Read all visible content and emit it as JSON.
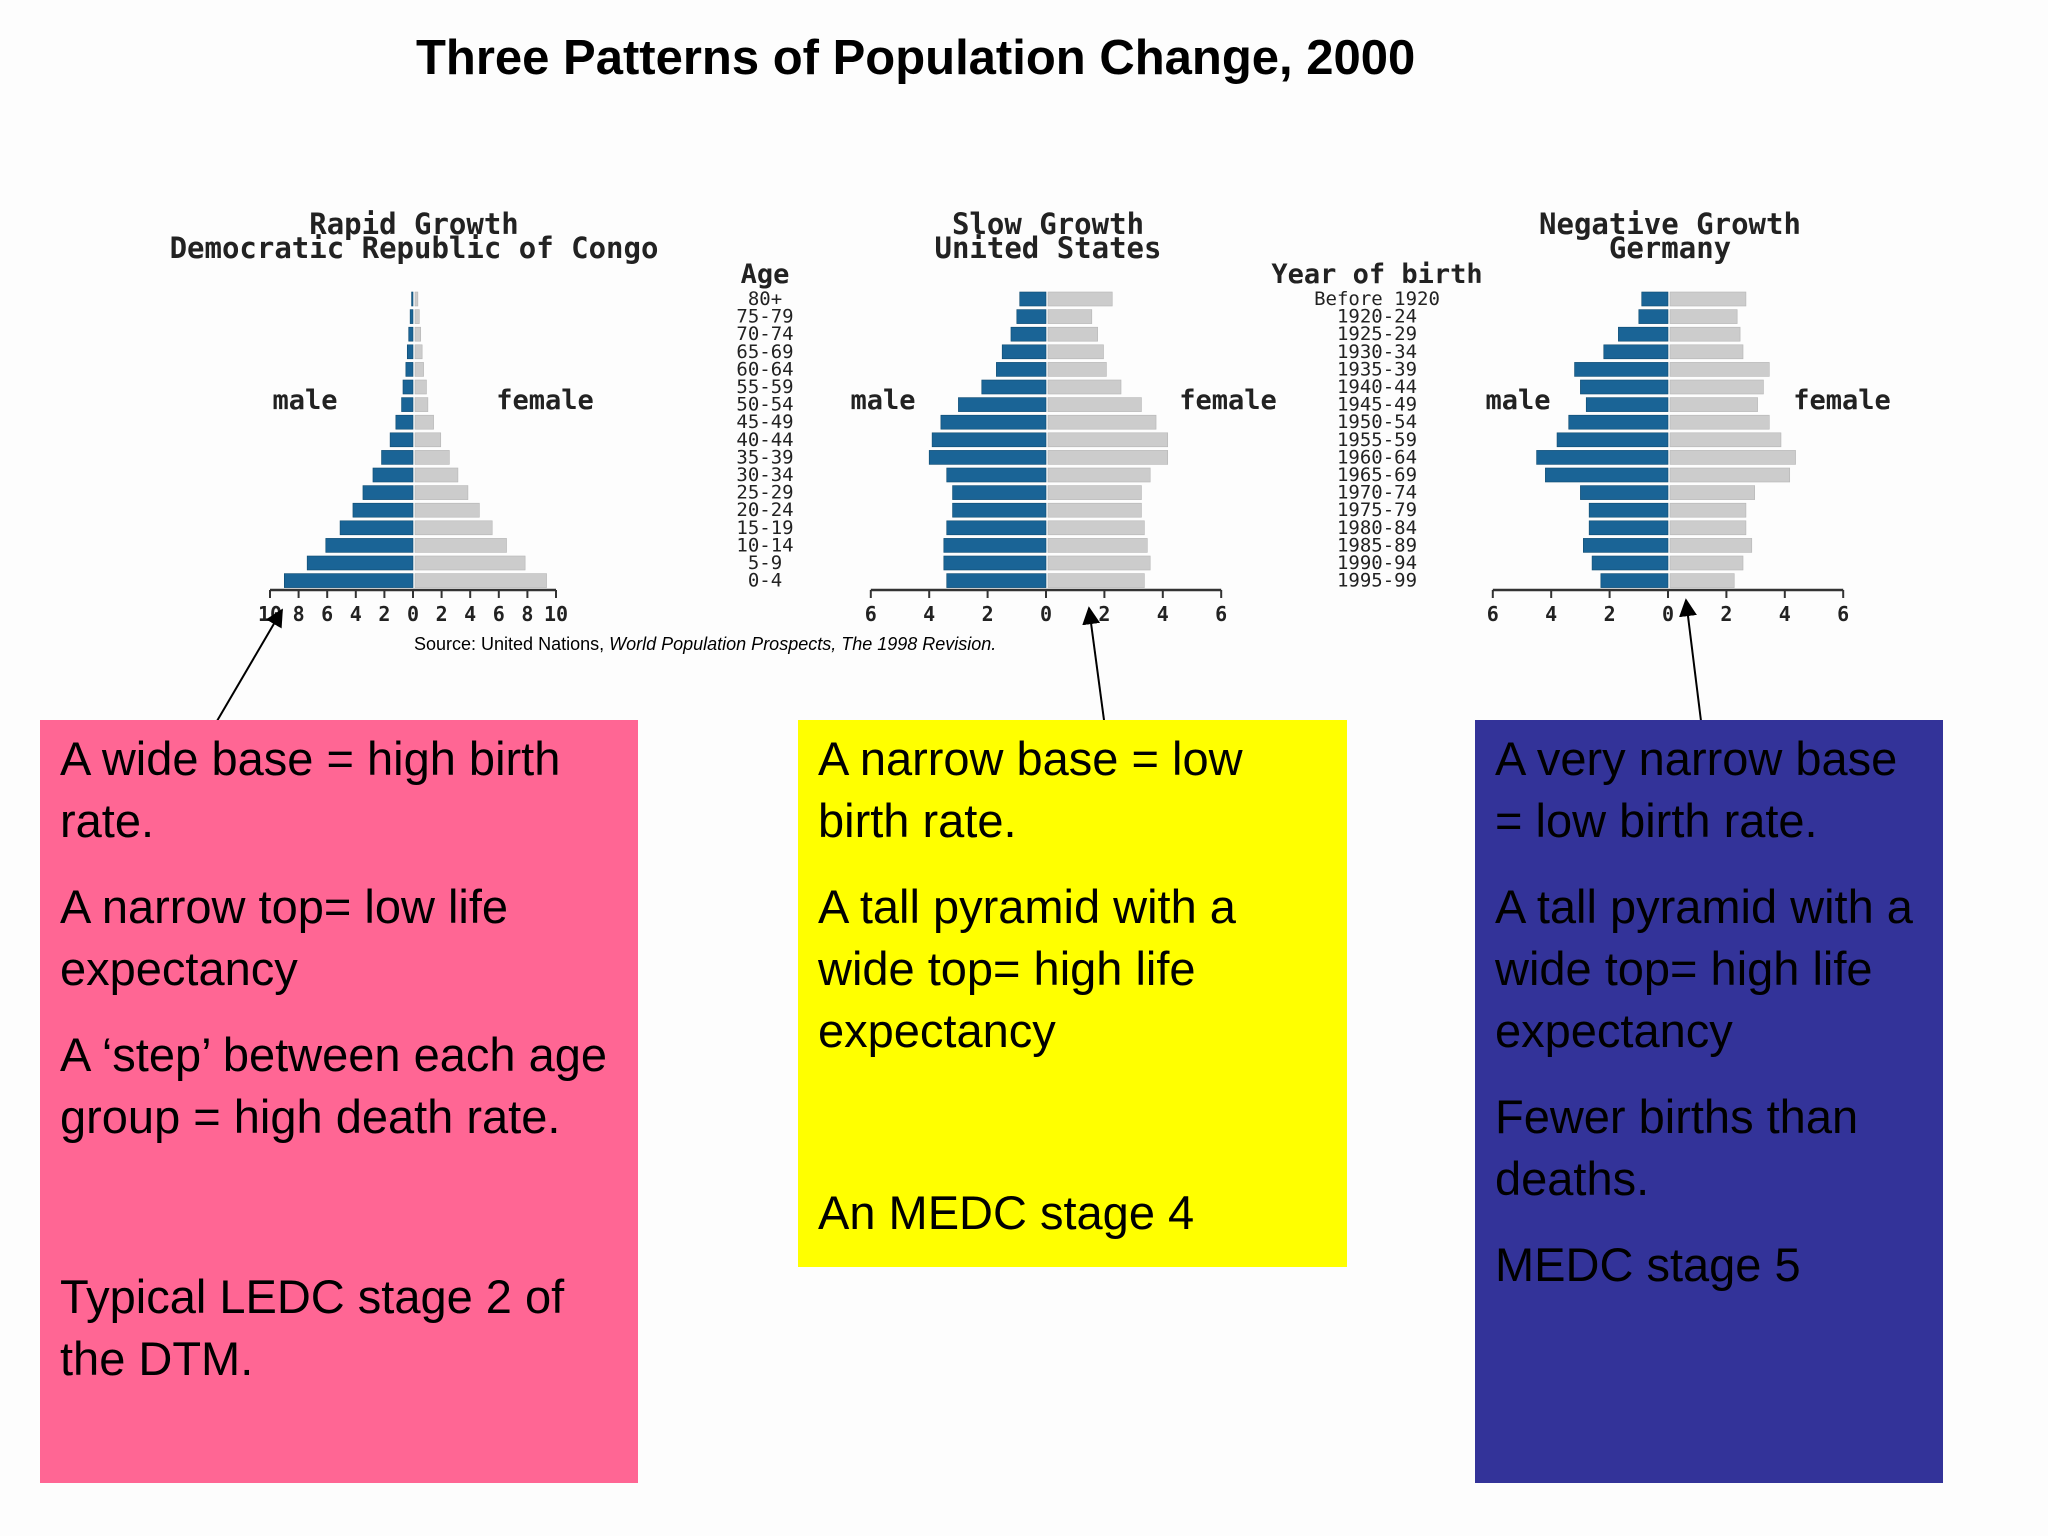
{
  "title": "Three Patterns of Population Change, 2000",
  "source": {
    "prefix": "Source: United Nations, ",
    "publication": "World Population Prospects, The 1998 Revision."
  },
  "colors": {
    "male": "#1a6496",
    "female": "#cccccc"
  },
  "chart_data": [
    {
      "type": "bar",
      "orientation": "horizontal-pyramid",
      "title": "Rapid Growth",
      "subtitle": "Democratic Republic of Congo",
      "side_labels": {
        "male": "male",
        "female": "female"
      },
      "categories_label": "Age",
      "categories": [
        "80+",
        "75-79",
        "70-74",
        "65-69",
        "60-64",
        "55-59",
        "50-54",
        "45-49",
        "40-44",
        "35-39",
        "30-34",
        "25-29",
        "20-24",
        "15-19",
        "10-14",
        "5-9",
        "0-4"
      ],
      "xlim": [
        -10,
        10
      ],
      "ticks": [
        10,
        8,
        6,
        4,
        2,
        0,
        2,
        4,
        6,
        8,
        10
      ],
      "series": [
        {
          "name": "male",
          "values": [
            0.1,
            0.2,
            0.3,
            0.4,
            0.5,
            0.7,
            0.8,
            1.2,
            1.6,
            2.2,
            2.8,
            3.5,
            4.2,
            5.1,
            6.1,
            7.4,
            9.0
          ]
        },
        {
          "name": "female",
          "values": [
            0.2,
            0.3,
            0.4,
            0.5,
            0.6,
            0.8,
            0.9,
            1.3,
            1.8,
            2.4,
            3.0,
            3.7,
            4.5,
            5.4,
            6.4,
            7.7,
            9.2
          ]
        }
      ]
    },
    {
      "type": "bar",
      "orientation": "horizontal-pyramid",
      "title": "Slow Growth",
      "subtitle": "United States",
      "side_labels": {
        "male": "male",
        "female": "female"
      },
      "xlim": [
        -6,
        6
      ],
      "ticks": [
        6,
        4,
        2,
        0,
        2,
        4,
        6
      ],
      "series": [
        {
          "name": "male",
          "values": [
            0.9,
            1.0,
            1.2,
            1.5,
            1.7,
            2.2,
            3.0,
            3.6,
            3.9,
            4.0,
            3.4,
            3.2,
            3.2,
            3.4,
            3.5,
            3.5,
            3.4
          ]
        },
        {
          "name": "female",
          "values": [
            2.2,
            1.5,
            1.7,
            1.9,
            2.0,
            2.5,
            3.2,
            3.7,
            4.1,
            4.1,
            3.5,
            3.2,
            3.2,
            3.3,
            3.4,
            3.5,
            3.3
          ]
        }
      ]
    },
    {
      "type": "bar",
      "orientation": "horizontal-pyramid",
      "title": "Negative Growth",
      "subtitle": "Germany",
      "side_labels": {
        "male": "male",
        "female": "female"
      },
      "categories_label": "Year of birth",
      "categories": [
        "Before 1920",
        "1920-24",
        "1925-29",
        "1930-34",
        "1935-39",
        "1940-44",
        "1945-49",
        "1950-54",
        "1955-59",
        "1960-64",
        "1965-69",
        "1970-74",
        "1975-79",
        "1980-84",
        "1985-89",
        "1990-94",
        "1995-99"
      ],
      "xlim": [
        -6,
        6
      ],
      "ticks": [
        6,
        4,
        2,
        0,
        2,
        4,
        6
      ],
      "series": [
        {
          "name": "male",
          "values": [
            0.9,
            1.0,
            1.7,
            2.2,
            3.2,
            3.0,
            2.8,
            3.4,
            3.8,
            4.5,
            4.2,
            3.0,
            2.7,
            2.7,
            2.9,
            2.6,
            2.3
          ]
        },
        {
          "name": "female",
          "values": [
            2.6,
            2.3,
            2.4,
            2.5,
            3.4,
            3.2,
            3.0,
            3.4,
            3.8,
            4.3,
            4.1,
            2.9,
            2.6,
            2.6,
            2.8,
            2.5,
            2.2
          ]
        }
      ]
    }
  ],
  "notes": {
    "rapid": [
      "A wide base = high birth rate.",
      "A narrow top= low life expectancy",
      "A ‘step’ between each age group = high death rate.",
      "Typical LEDC stage 2 of the DTM."
    ],
    "slow": [
      "A narrow base = low birth rate.",
      "A tall pyramid with a wide top= high life expectancy",
      "An MEDC stage 4"
    ],
    "negative": [
      "A very narrow base = low birth rate.",
      "A tall pyramid with a wide top= high life expectancy",
      "Fewer births than deaths.",
      "MEDC stage 5"
    ]
  }
}
